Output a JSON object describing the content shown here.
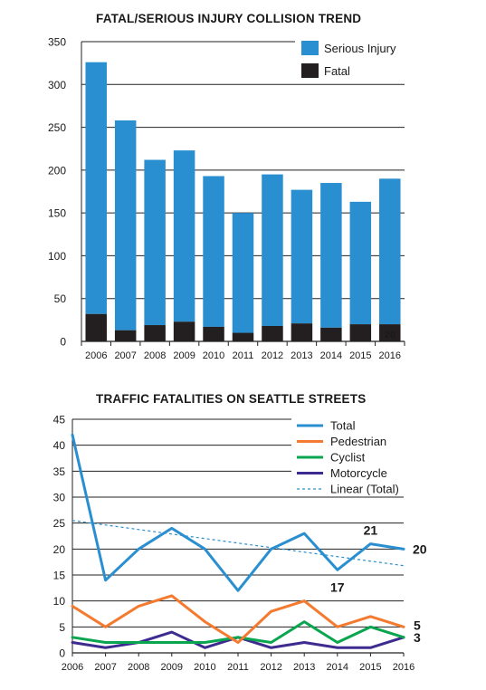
{
  "chart_data": [
    {
      "type": "bar",
      "stacked": true,
      "title": "FATAL/SERIOUS INJURY COLLISION TREND",
      "categories": [
        "2006",
        "2007",
        "2008",
        "2009",
        "2010",
        "2011",
        "2012",
        "2013",
        "2014",
        "2015",
        "2016"
      ],
      "series": [
        {
          "name": "Fatal",
          "color": "#231f20",
          "values": [
            32,
            13,
            19,
            23,
            17,
            10,
            18,
            21,
            16,
            20,
            20
          ]
        },
        {
          "name": "Serious Injury",
          "color": "#2a8fd0",
          "values": [
            294,
            245,
            193,
            200,
            176,
            140,
            177,
            156,
            169,
            143,
            170
          ]
        }
      ],
      "data_labels": [
        {
          "category": "2016",
          "series": "Fatal",
          "text": "20"
        }
      ],
      "ylim": [
        0,
        350
      ],
      "yticks": [
        "0",
        "50",
        "100",
        "150",
        "200",
        "250",
        "300",
        "350"
      ],
      "grid": true,
      "legend": "top-right"
    },
    {
      "type": "line",
      "title": "TRAFFIC FATALITIES ON SEATTLE STREETS",
      "x": [
        "2006",
        "2007",
        "2008",
        "2009",
        "2010",
        "2011",
        "2012",
        "2013",
        "2014",
        "2015",
        "2016"
      ],
      "series": [
        {
          "name": "Total",
          "color": "#2a8fd0",
          "values": [
            42,
            14,
            20,
            24,
            20,
            12,
            20,
            23,
            16,
            21,
            20
          ]
        },
        {
          "name": "Pedestrian",
          "color": "#f37a2f",
          "values": [
            9,
            5,
            9,
            11,
            6,
            2,
            8,
            10,
            5,
            7,
            5
          ]
        },
        {
          "name": "Cyclist",
          "color": "#0aa54f",
          "values": [
            3,
            2,
            2,
            2,
            2,
            3,
            2,
            6,
            2,
            5,
            3
          ]
        },
        {
          "name": "Motorcycle",
          "color": "#3e2b8f",
          "values": [
            2,
            1,
            2,
            4,
            1,
            3,
            1,
            2,
            1,
            1,
            3
          ]
        }
      ],
      "trendline": {
        "name": "Linear (Total)",
        "color": "#2a8fd0",
        "values": [
          25.5,
          16.8
        ]
      },
      "annotations": [
        "21",
        "17",
        "20",
        "5",
        "3"
      ],
      "ylim": [
        0,
        45
      ],
      "yticks": [
        "0",
        "5",
        "10",
        "15",
        "20",
        "25",
        "30",
        "35",
        "40",
        "45"
      ],
      "grid": true,
      "legend": "top-right"
    }
  ]
}
